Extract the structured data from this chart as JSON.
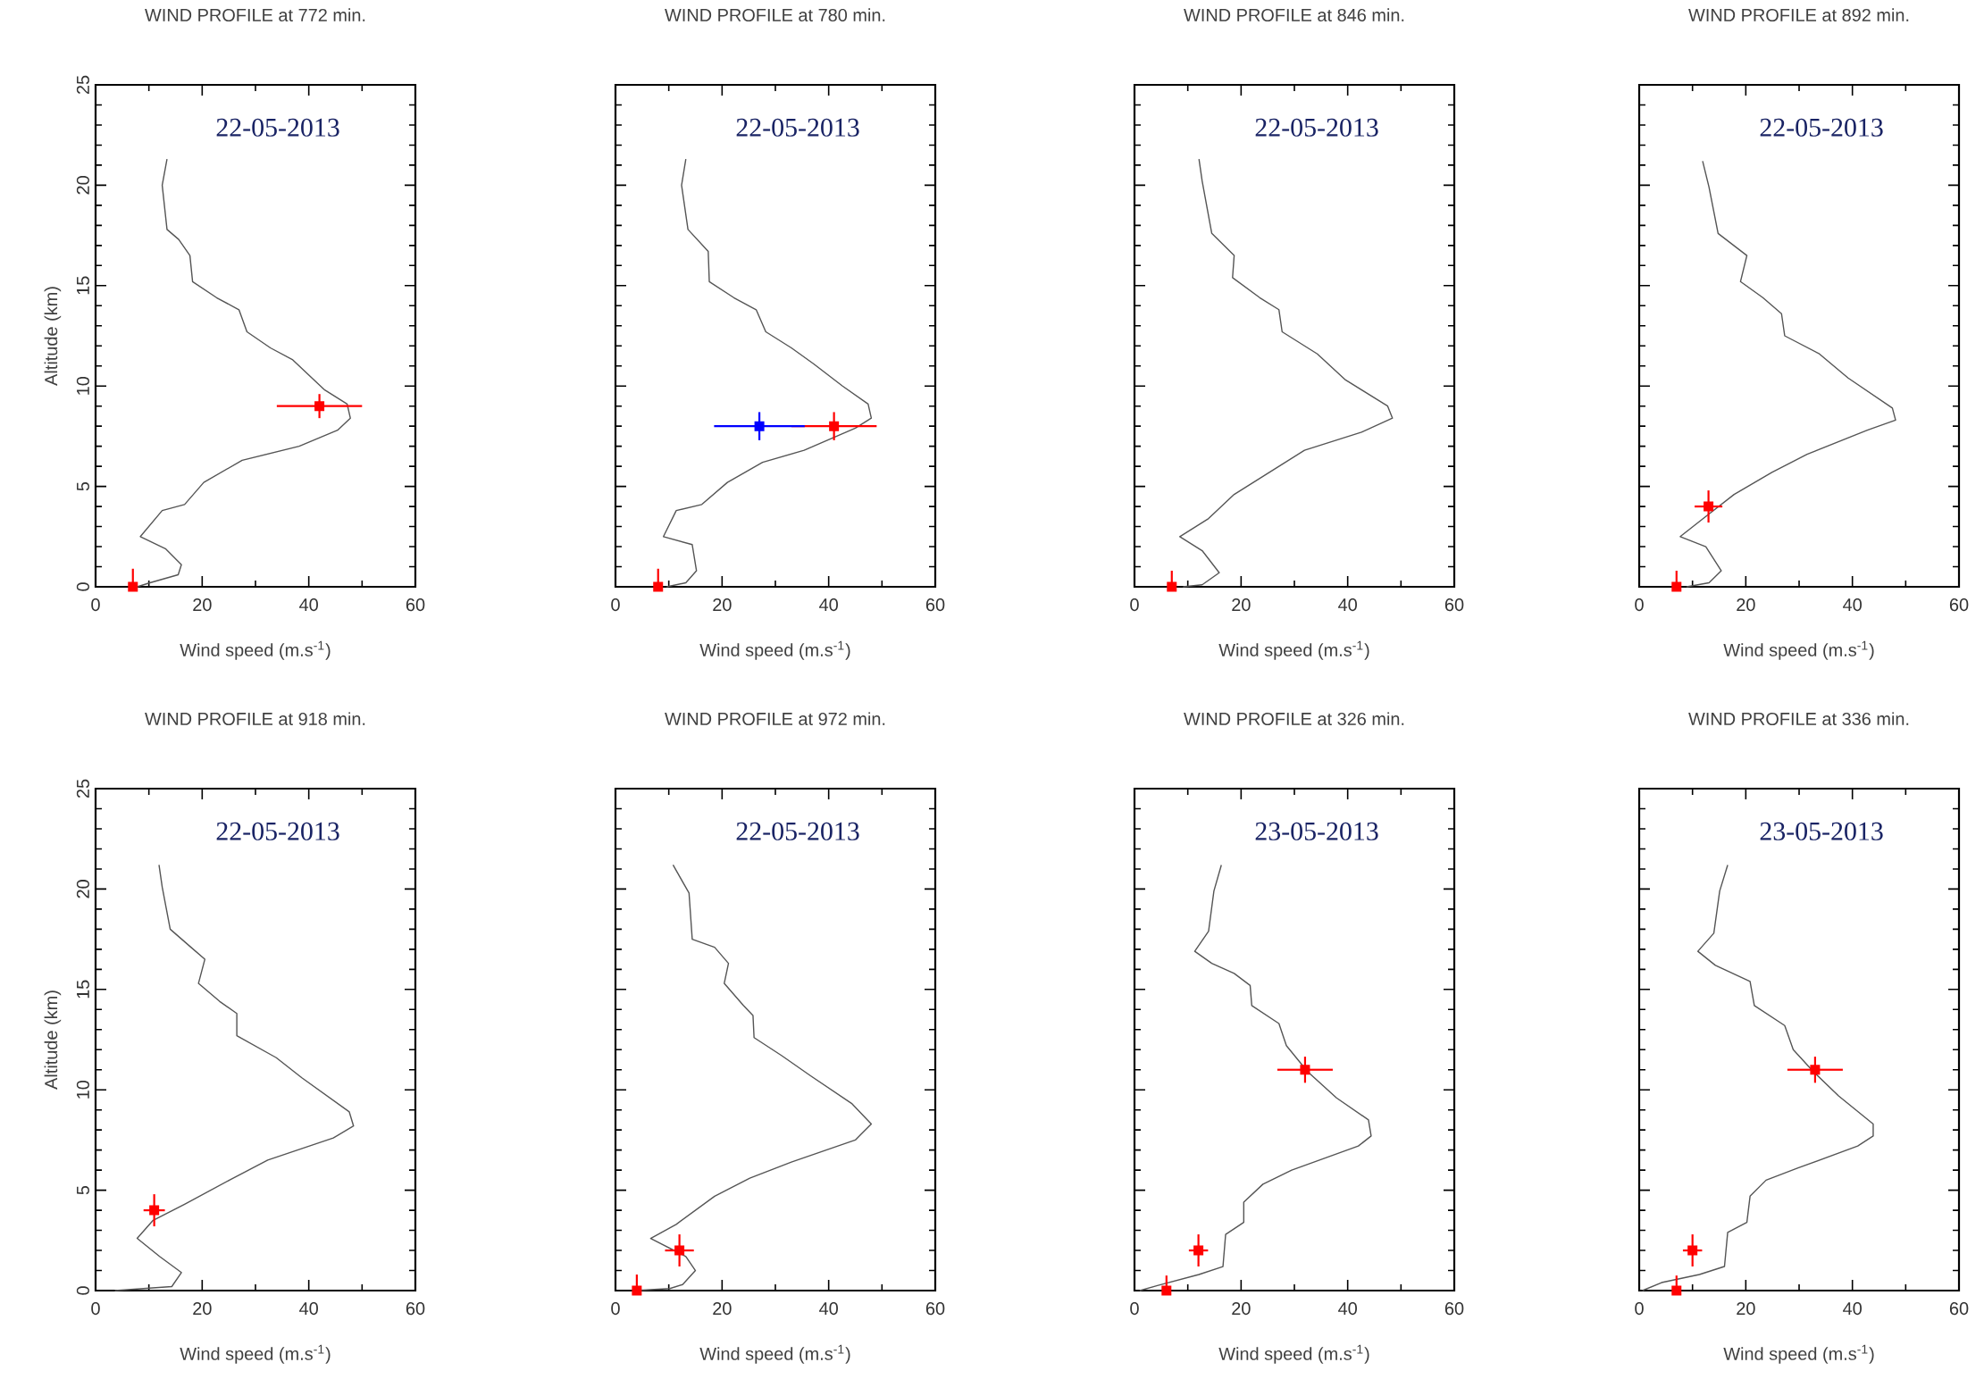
{
  "chart_data": [
    {
      "type": "line",
      "title": "WIND PROFILE at 772 min.",
      "xlabel": "Wind speed (m.s$^{-1}$)",
      "ylabel": "Altitude (km)",
      "annotations": [
        "22-05-2013"
      ],
      "xlim": [
        0,
        60
      ],
      "xticks": [
        0,
        20,
        40,
        60
      ],
      "ylim": [
        0,
        25
      ],
      "yticks": [
        0,
        5,
        10,
        15,
        20,
        25
      ],
      "series": [
        {
          "color": "#555555",
          "x": [
            13.4,
            12.5,
            13.4,
            15.6,
            17.7,
            18.2,
            22.7,
            26.9,
            28.4,
            32.8,
            37,
            43,
            47.2,
            47.8,
            45.4,
            38.2,
            27.5,
            20.3,
            16.7,
            12.5,
            8.4,
            13.1,
            16.1,
            15.5,
            10.2,
            7.8
          ],
          "values": [
            21.3,
            20.0,
            17.8,
            17.3,
            16.5,
            15.2,
            14.4,
            13.8,
            12.7,
            11.9,
            11.3,
            9.8,
            9.1,
            8.4,
            7.8,
            7.0,
            6.3,
            5.2,
            4.1,
            3.8,
            2.5,
            1.9,
            1.1,
            0.6,
            0.2,
            0
          ]
        },
        {
          "type": "scatter",
          "color": "#ff0000",
          "marker": "square",
          "x": [
            42,
            7
          ],
          "values": [
            9,
            0
          ],
          "errors": [
            0.6,
            [
              0,
              0.9
            ]
          ],
          "xerrors": [
            8,
            null
          ]
        }
      ]
    },
    {
      "type": "line",
      "title": "WIND PROFILE at 780 min.",
      "xlabel": "Wind speed (m.s$^{-1}$)",
      "annotations": [
        "22-05-2013"
      ],
      "xlim": [
        0,
        60
      ],
      "xticks": [
        0,
        20,
        40,
        60
      ],
      "ylim": [
        0,
        25
      ],
      "yticks": [
        0,
        5,
        10,
        15,
        20,
        25
      ],
      "tick_labels": "x",
      "series": [
        {
          "color": "#555555",
          "x": [
            13.2,
            12.4,
            13.6,
            17.4,
            17.6,
            22.2,
            26.4,
            28.2,
            33,
            37.2,
            42.6,
            47.4,
            48,
            45,
            35.4,
            27.6,
            21,
            16.2,
            11.4,
            9,
            14.4,
            15.2,
            13.2,
            9.6
          ],
          "values": [
            21.3,
            20,
            17.8,
            16.7,
            15.2,
            14.4,
            13.8,
            12.7,
            11.9,
            11.1,
            10.0,
            9.1,
            8.4,
            7.9,
            6.8,
            6.2,
            5.2,
            4.1,
            3.8,
            2.5,
            2.1,
            0.8,
            0.2,
            0
          ]
        },
        {
          "type": "scatter",
          "color": "#ff0000",
          "marker": "square",
          "x": [
            41,
            8
          ],
          "values": [
            8,
            0
          ],
          "errors": [
            0.7,
            [
              0,
              0.9
            ]
          ],
          "xerrors": [
            8,
            null
          ]
        },
        {
          "type": "scatter",
          "color": "#0000ff",
          "marker": "square",
          "x": [
            27
          ],
          "values": [
            8
          ],
          "errors": [
            0.7
          ],
          "xerrors": [
            8.5
          ]
        }
      ]
    },
    {
      "type": "line",
      "title": "WIND PROFILE at 846 min.",
      "xlabel": "Wind speed (m.s$^{-1}$)",
      "annotations": [
        "22-05-2013"
      ],
      "xlim": [
        0,
        60
      ],
      "xticks": [
        0,
        20,
        40,
        60
      ],
      "ylim": [
        0,
        25
      ],
      "yticks": [
        0,
        5,
        10,
        15,
        20,
        25
      ],
      "tick_labels": "x",
      "series": [
        {
          "color": "#555555",
          "x": [
            12.1,
            12.7,
            14.5,
            18.7,
            18.4,
            23.5,
            27.1,
            27.7,
            34.3,
            39.6,
            47.5,
            48.4,
            42.6,
            31.9,
            27.7,
            18.7,
            13.9,
            8.5,
            12.7,
            15.9,
            12.7,
            9.1
          ],
          "values": [
            21.3,
            20.2,
            17.6,
            16.5,
            15.4,
            14.4,
            13.8,
            12.7,
            11.6,
            10.3,
            9.0,
            8.4,
            7.7,
            6.8,
            6.1,
            4.6,
            3.4,
            2.5,
            1.8,
            0.7,
            0.1,
            0
          ]
        },
        {
          "type": "scatter",
          "color": "#ff0000",
          "marker": "square",
          "x": [
            7
          ],
          "values": [
            0
          ],
          "errors": [
            [
              0,
              0.8
            ]
          ],
          "xerrors": [
            null
          ]
        }
      ]
    },
    {
      "type": "line",
      "title": "WIND PROFILE at 892 min.",
      "xlabel": "Wind speed (m.s$^{-1}$)",
      "annotations": [
        "22-05-2013"
      ],
      "xlim": [
        0,
        60
      ],
      "xticks": [
        0,
        20,
        40,
        60
      ],
      "ylim": [
        0,
        25
      ],
      "yticks": [
        0,
        5,
        10,
        15,
        20,
        25
      ],
      "tick_labels": "x",
      "series": [
        {
          "color": "#555555",
          "x": [
            11.9,
            13.1,
            14.8,
            20.2,
            19,
            23.2,
            26.7,
            27.3,
            33.8,
            39.2,
            47.5,
            48.1,
            42.8,
            31.5,
            24.9,
            17.8,
            12.5,
            7.7,
            12.5,
            15.4,
            13.1,
            8.9
          ],
          "values": [
            21.2,
            19.9,
            17.6,
            16.5,
            15.2,
            14.4,
            13.6,
            12.5,
            11.6,
            10.4,
            8.9,
            8.3,
            7.8,
            6.6,
            5.7,
            4.6,
            3.5,
            2.5,
            2.0,
            0.8,
            0.2,
            0
          ]
        },
        {
          "type": "scatter",
          "color": "#ff0000",
          "marker": "square",
          "x": [
            13,
            7
          ],
          "values": [
            4,
            0
          ],
          "errors": [
            0.8,
            [
              0,
              0.8
            ]
          ],
          "xerrors": [
            2.6,
            null
          ]
        }
      ]
    },
    {
      "type": "line",
      "title": "WIND PROFILE at 918 min.",
      "xlabel": "Wind speed (m.s$^{-1}$)",
      "ylabel": "Altitude (km)",
      "annotations": [
        "22-05-2013"
      ],
      "xlim": [
        0,
        60
      ],
      "xticks": [
        0,
        20,
        40,
        60
      ],
      "ylim": [
        0,
        25
      ],
      "yticks": [
        0,
        5,
        10,
        15,
        20,
        25
      ],
      "series": [
        {
          "color": "#555555",
          "x": [
            11.9,
            12.5,
            14,
            17.9,
            20.5,
            19.3,
            23.3,
            26.5,
            26.5,
            33.9,
            38.7,
            47.6,
            48.4,
            44.6,
            32.3,
            25.1,
            16.7,
            10.8,
            7.8,
            12,
            16.1,
            14.3,
            3.6
          ],
          "values": [
            21.2,
            20.1,
            18.0,
            17.1,
            16.5,
            15.3,
            14.4,
            13.8,
            12.7,
            11.6,
            10.6,
            8.9,
            8.2,
            7.6,
            6.5,
            5.5,
            4.3,
            3.5,
            2.6,
            1.7,
            0.9,
            0.2,
            0
          ]
        },
        {
          "type": "scatter",
          "color": "#ff0000",
          "marker": "square",
          "x": [
            11
          ],
          "values": [
            4
          ],
          "errors": [
            0.8
          ],
          "xerrors": [
            2
          ]
        }
      ]
    },
    {
      "type": "line",
      "title": "WIND PROFILE at 972 min.",
      "xlabel": "Wind speed (m.s$^{-1}$)",
      "annotations": [
        "22-05-2013"
      ],
      "xlim": [
        0,
        60
      ],
      "xticks": [
        0,
        20,
        40,
        60
      ],
      "ylim": [
        0,
        25
      ],
      "yticks": [
        0,
        5,
        10,
        15,
        20,
        25
      ],
      "tick_labels": "x",
      "series": [
        {
          "color": "#555555",
          "x": [
            10.8,
            13.8,
            14.4,
            18.6,
            21.2,
            20.4,
            24,
            25.8,
            26,
            31.2,
            36.6,
            44.4,
            48,
            45,
            33,
            25.2,
            18.6,
            11.4,
            6.6,
            13.2,
            15,
            12.6,
            10.2,
            3.6
          ],
          "values": [
            21.2,
            19.8,
            17.5,
            17.1,
            16.3,
            15.3,
            14.2,
            13.7,
            12.6,
            11.7,
            10.7,
            9.3,
            8.3,
            7.5,
            6.4,
            5.6,
            4.7,
            3.3,
            2.6,
            1.7,
            1.0,
            0.3,
            0.1,
            0
          ]
        },
        {
          "type": "scatter",
          "color": "#ff0000",
          "marker": "square",
          "x": [
            12,
            4
          ],
          "values": [
            2,
            0
          ],
          "errors": [
            0.8,
            [
              0,
              0.8
            ]
          ],
          "xerrors": [
            2.7,
            null
          ]
        }
      ]
    },
    {
      "type": "line",
      "title": "WIND PROFILE at 326 min.",
      "xlabel": "Wind speed (m.s$^{-1}$)",
      "annotations": [
        "23-05-2013"
      ],
      "xlim": [
        0,
        60
      ],
      "xticks": [
        0,
        20,
        40,
        60
      ],
      "ylim": [
        0,
        25
      ],
      "yticks": [
        0,
        5,
        10,
        15,
        20,
        25
      ],
      "tick_labels": "x",
      "series": [
        {
          "color": "#555555",
          "x": [
            16.3,
            14.9,
            13.9,
            11.3,
            14.5,
            18.7,
            21.7,
            22,
            27.1,
            28.5,
            32.5,
            37.9,
            43.9,
            44.4,
            42,
            29.5,
            24.1,
            20.5,
            20.5,
            17.1,
            16.6,
            12.1,
            4.3,
            1
          ],
          "values": [
            21.2,
            19.9,
            17.9,
            16.9,
            16.3,
            15.8,
            15.2,
            14.2,
            13.3,
            12.2,
            10.9,
            9.6,
            8.5,
            7.7,
            7.2,
            6.0,
            5.3,
            4.4,
            3.4,
            2.8,
            1.2,
            0.8,
            0.25,
            0
          ]
        },
        {
          "type": "scatter",
          "color": "#ff0000",
          "marker": "square",
          "x": [
            32,
            12,
            6
          ],
          "values": [
            11,
            2,
            0
          ],
          "errors": [
            0.65,
            0.8,
            [
              0,
              0.75
            ]
          ],
          "xerrors": [
            5.2,
            1.8,
            null
          ]
        }
      ]
    },
    {
      "type": "line",
      "title": "WIND PROFILE at 336 min.",
      "xlabel": "Wind speed (m.s$^{-1}$)",
      "annotations": [
        "23-05-2013"
      ],
      "xlim": [
        0,
        60
      ],
      "xticks": [
        0,
        20,
        40,
        60
      ],
      "ylim": [
        0,
        25
      ],
      "yticks": [
        0,
        5,
        10,
        15,
        20,
        25
      ],
      "tick_labels": "x",
      "series": [
        {
          "color": "#555555",
          "x": [
            16.6,
            15.1,
            14,
            11,
            14.3,
            20.8,
            21.6,
            27.3,
            28.9,
            32.7,
            37.4,
            43.9,
            43.9,
            41,
            29.7,
            23.8,
            20.8,
            20.2,
            16.6,
            16,
            11.3,
            4.2,
            0.6
          ],
          "values": [
            21.2,
            19.9,
            17.8,
            16.9,
            16.2,
            15.4,
            14.2,
            13.2,
            12.0,
            10.9,
            9.7,
            8.3,
            7.7,
            7.2,
            6.1,
            5.5,
            4.7,
            3.4,
            2.9,
            1.2,
            0.8,
            0.4,
            0
          ]
        },
        {
          "type": "scatter",
          "color": "#ff0000",
          "marker": "square",
          "x": [
            33,
            10,
            7
          ],
          "values": [
            11,
            2,
            0
          ],
          "errors": [
            0.65,
            0.8,
            [
              0,
              0.75
            ]
          ],
          "xerrors": [
            5.2,
            1.8,
            null
          ]
        }
      ]
    }
  ]
}
